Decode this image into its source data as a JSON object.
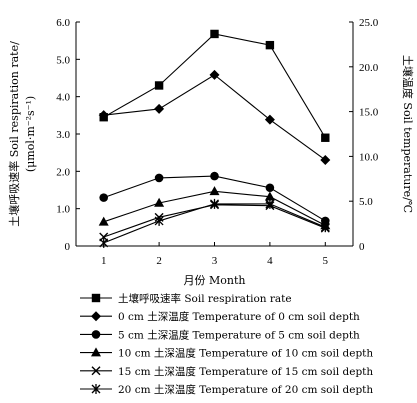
{
  "chart_data": {
    "type": "line",
    "xlabel": "月份 Month",
    "ylabel_left_line1": "土壤呼吸速率 Soil respiration rate/",
    "ylabel_left_line2": "(μmol·m⁻²s⁻¹)",
    "ylabel_right": "土壤温度 Soil temperature/℃",
    "x": [
      1,
      2,
      3,
      4,
      5
    ],
    "xlim": [
      0.5,
      5.5
    ],
    "x_ticks": [
      "1",
      "2",
      "3",
      "4",
      "5"
    ],
    "ylim_left": [
      0,
      6
    ],
    "y_left_ticks": [
      "0",
      "1.0",
      "2.0",
      "3.0",
      "4.0",
      "5.0",
      "6.0"
    ],
    "ylim_right": [
      0,
      25
    ],
    "y_right_ticks": [
      "0",
      "5.0",
      "10.0",
      "15.0",
      "20.0",
      "25.0"
    ],
    "grid": false,
    "legend_position": "bottom",
    "series": [
      {
        "name": "土壤呼吸速率 Soil respiration rate",
        "marker": "square",
        "axis": "left",
        "values": [
          3.45,
          4.3,
          5.68,
          5.38,
          2.9
        ]
      },
      {
        "name": "0 cm 土深温度 Temperature of 0 cm soil depth",
        "marker": "diamond",
        "axis": "right",
        "values": [
          14.6,
          15.3,
          19.1,
          14.1,
          9.6
        ]
      },
      {
        "name": "5 cm 土深温度 Temperature of 5 cm soil depth",
        "marker": "circle",
        "axis": "right",
        "values": [
          5.4,
          7.6,
          7.8,
          6.5,
          2.8
        ]
      },
      {
        "name": "10 cm 土深温度 Temperature of 10 cm soil depth",
        "marker": "triangle",
        "axis": "right",
        "values": [
          2.7,
          4.8,
          6.1,
          5.5,
          2.3
        ]
      },
      {
        "name": "15 cm 土深温度 Temperature of 15 cm soil depth",
        "marker": "x",
        "axis": "right",
        "values": [
          1.0,
          3.2,
          4.6,
          4.5,
          2.0
        ]
      },
      {
        "name": "20 cm 土深温度 Temperature of 20 cm soil depth",
        "marker": "star",
        "axis": "right",
        "values": [
          0.35,
          2.8,
          4.7,
          4.7,
          2.1
        ]
      }
    ]
  }
}
